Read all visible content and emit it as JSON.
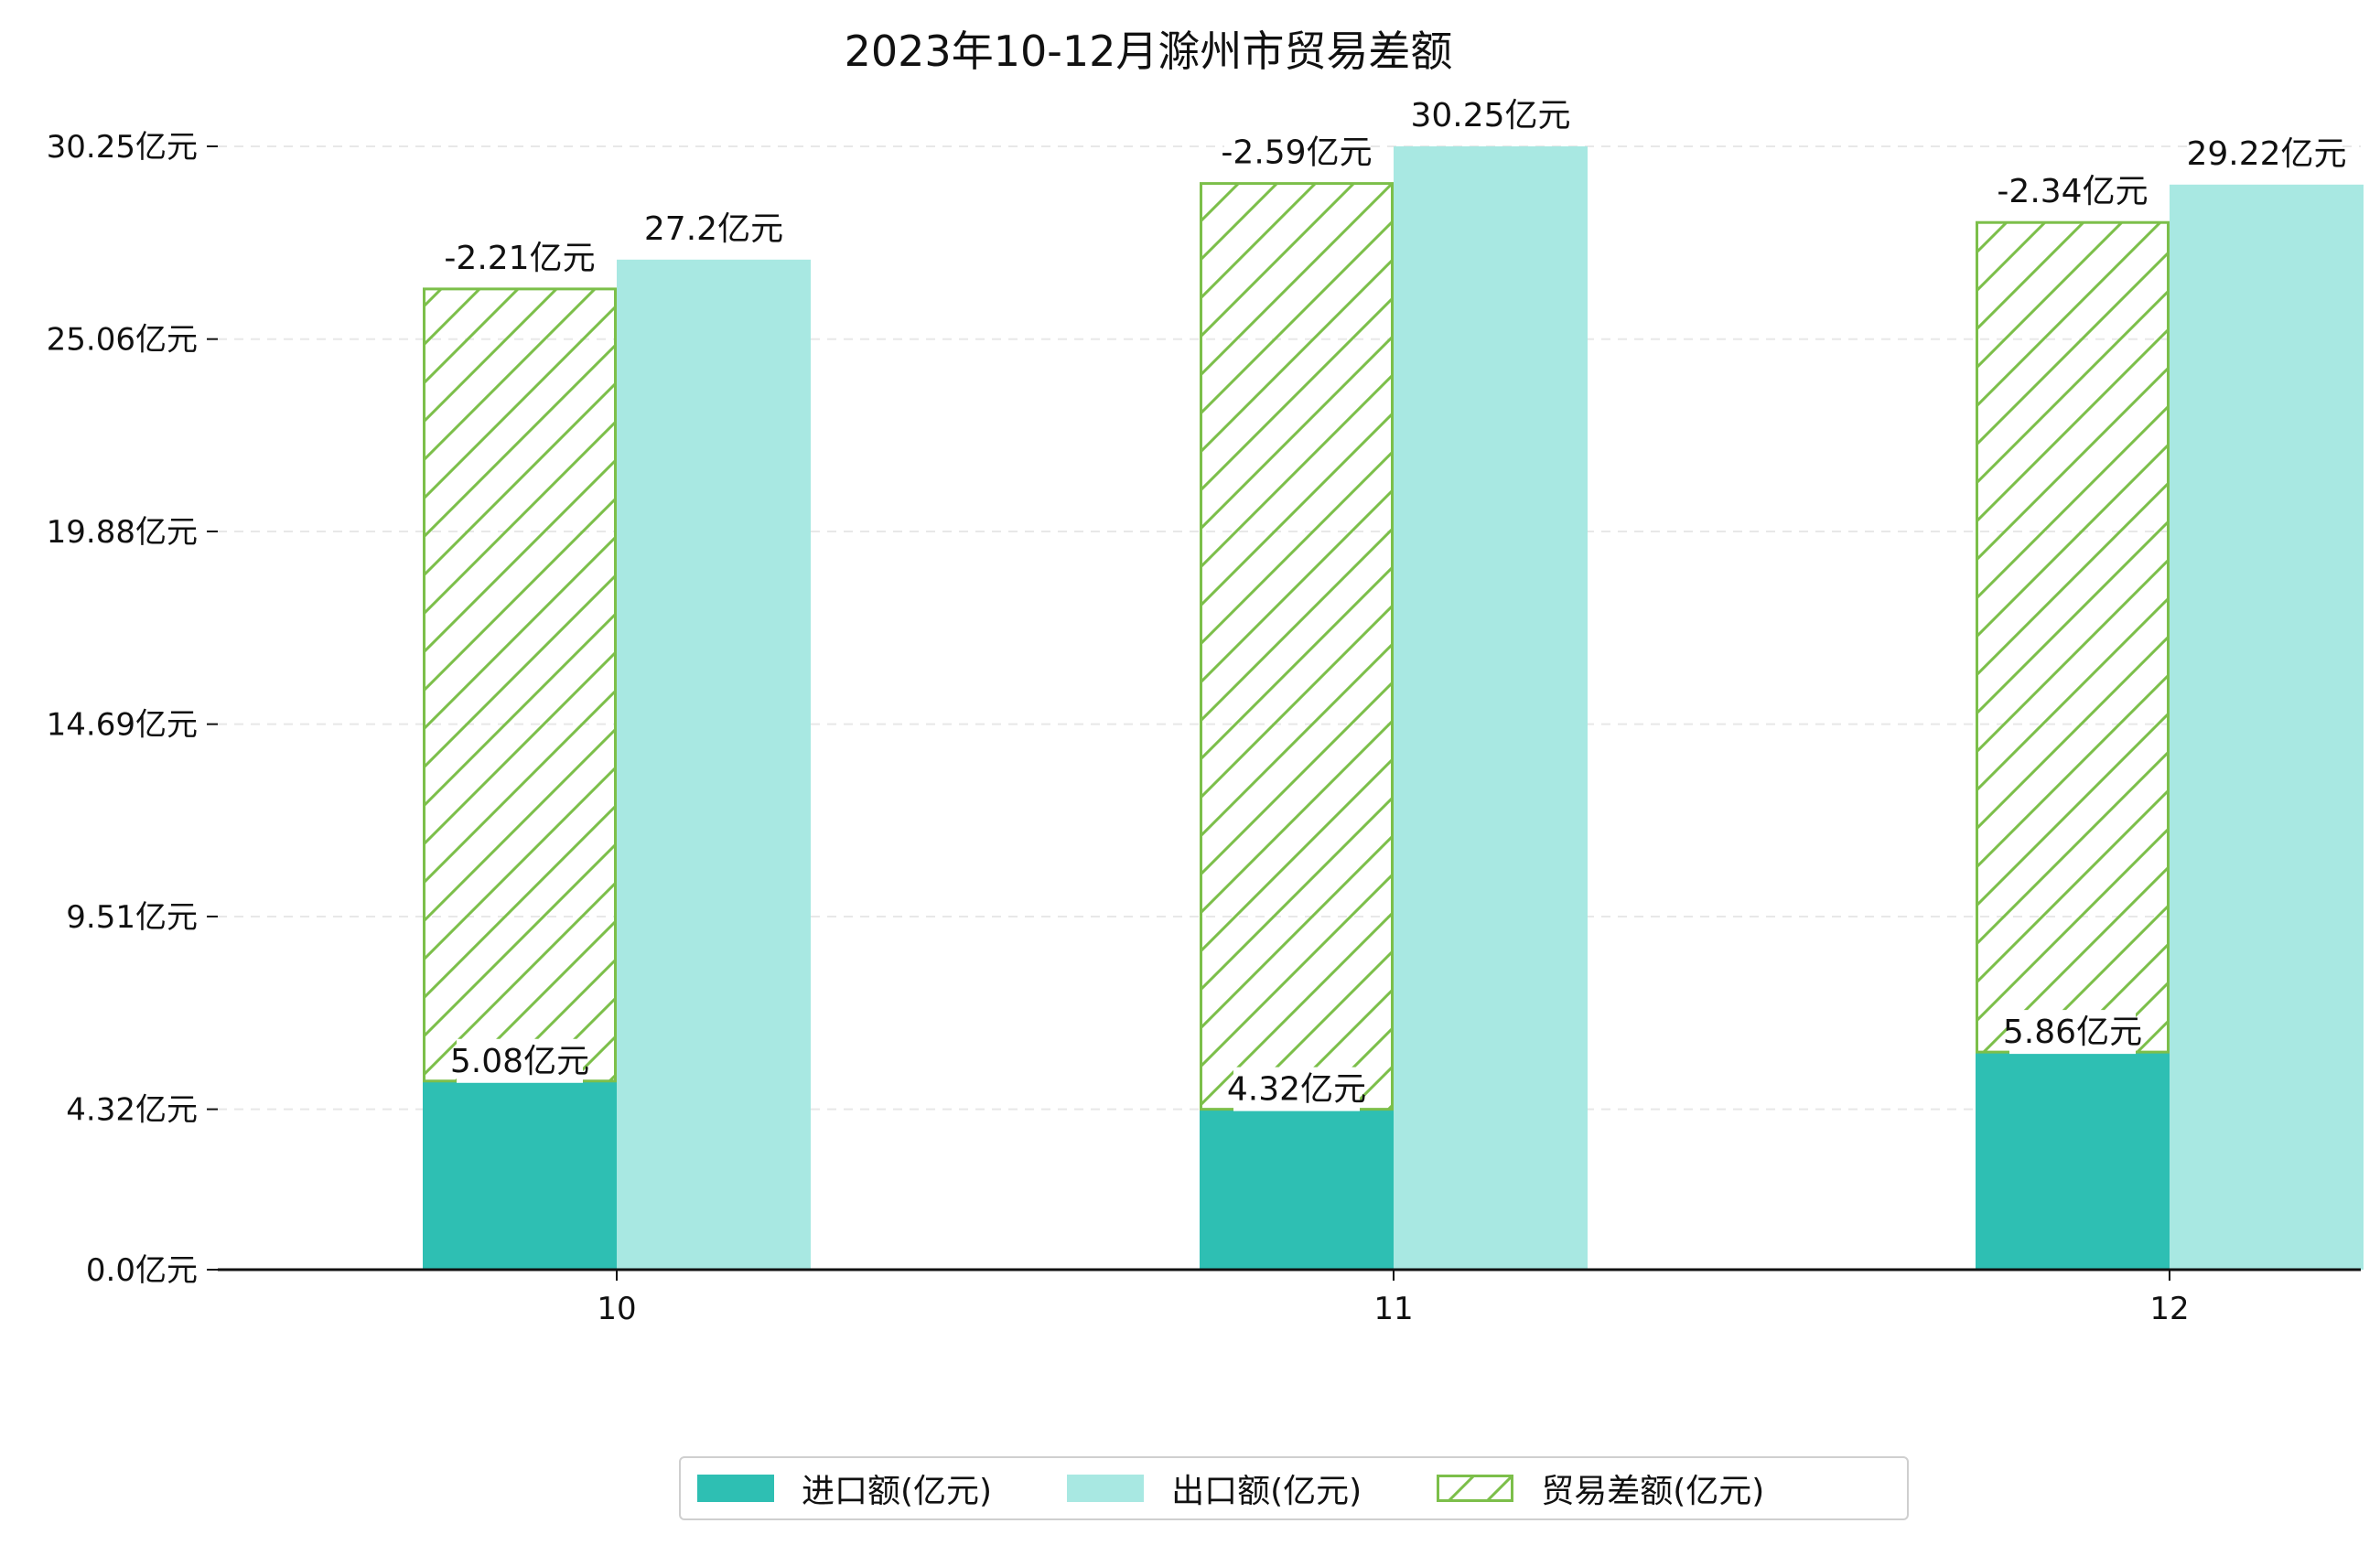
{
  "colors": {
    "import": "#2ebfb3",
    "export": "#a8e8e2",
    "balance_hatch": "#7cbf4a",
    "axis": "#111111",
    "grid": "#e8e8e8"
  },
  "chart_data": {
    "type": "bar",
    "title": "2023年10-12月滁州市贸易差额",
    "categories": [
      "10",
      "11",
      "12"
    ],
    "y_ticks": [
      "0.0亿元",
      "4.32亿元",
      "9.51亿元",
      "14.69亿元",
      "19.88亿元",
      "25.06亿元",
      "30.25亿元"
    ],
    "y_tick_values": [
      0.0,
      4.32,
      9.51,
      14.69,
      19.88,
      25.06,
      30.25
    ],
    "ylim": [
      0,
      30.25
    ],
    "grid": true,
    "legend_position": "bottom-center",
    "series": [
      {
        "name": "进口额(亿元)",
        "values": [
          5.08,
          4.32,
          5.86
        ],
        "labels": [
          "5.08亿元",
          "4.32亿元",
          "5.86亿元"
        ]
      },
      {
        "name": "出口额(亿元)",
        "values": [
          27.2,
          30.25,
          29.22
        ],
        "labels": [
          "27.2亿元",
          "30.25亿元",
          "29.22亿元"
        ]
      },
      {
        "name": "贸易差额(亿元)",
        "values": [
          -2.21,
          -2.59,
          -2.34
        ],
        "labels": [
          "-2.21亿元",
          "-2.59亿元",
          "-2.34亿元"
        ],
        "visual_top": [
          26.41,
          29.25,
          28.2
        ]
      }
    ]
  }
}
